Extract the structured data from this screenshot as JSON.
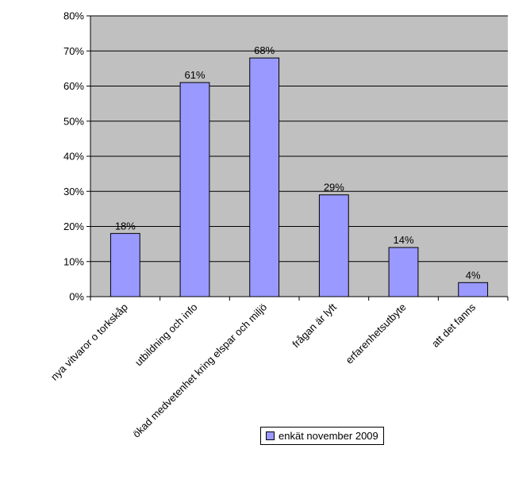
{
  "chart_data": {
    "type": "bar",
    "categories": [
      "nya vitvaror o torkskåp",
      "utbildning och info",
      "ökad medvetenhet kring elspar och miljö",
      "frågan är lyft",
      "erfarenhetsutbyte",
      "att det fanns"
    ],
    "series": [
      {
        "name": "enkät november 2009",
        "values": [
          18,
          61,
          68,
          29,
          14,
          4
        ],
        "data_labels": [
          "18%",
          "61%",
          "68%",
          "29%",
          "14%",
          "4%"
        ]
      }
    ],
    "ylim": [
      0,
      80
    ],
    "yticks": [
      "0%",
      "10%",
      "20%",
      "30%",
      "40%",
      "50%",
      "60%",
      "70%",
      "80%"
    ],
    "grid": true,
    "legend_position": "bottom-right",
    "colors": {
      "bar": "#9999ff",
      "plot_background": "#c0c0c0",
      "gridline": "#000000"
    }
  }
}
